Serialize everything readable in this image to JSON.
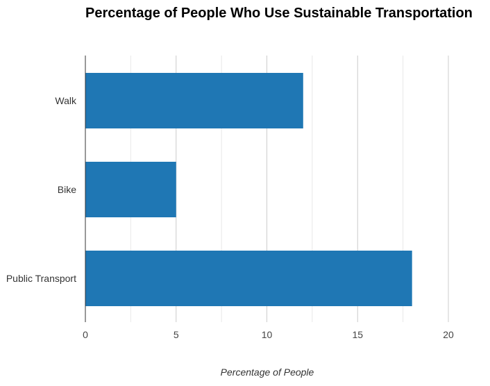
{
  "chart_data": {
    "type": "bar",
    "orientation": "horizontal",
    "title": "Percentage of People Who Use Sustainable Transportation",
    "xlabel": "Percentage of People",
    "ylabel": "",
    "categories": [
      "Walk",
      "Bike",
      "Public Transport"
    ],
    "values": [
      12,
      5,
      18
    ],
    "xlim": [
      0,
      20
    ],
    "x_ticks": [
      0,
      5,
      10,
      15,
      20
    ],
    "x_tick_labels": [
      "0",
      "5",
      "10",
      "15",
      "20"
    ],
    "grid": true,
    "legend": "none",
    "colors": {
      "bar": "#1f77b4",
      "grid_major": "#cccccc",
      "grid_minor": "#e8e8e8",
      "axis": "#333333"
    }
  }
}
